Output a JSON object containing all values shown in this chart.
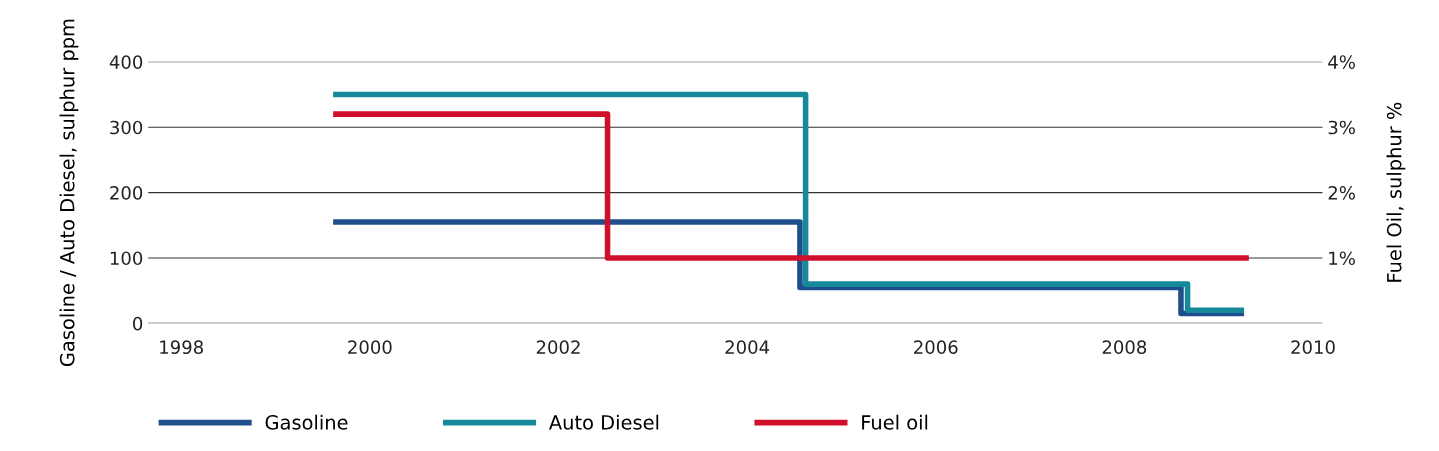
{
  "chart_data": {
    "type": "step",
    "ylabel": "Gasoline / Auto Diesel, sulphur ppm",
    "y2label": "Fuel Oil, sulphur %",
    "xlim": [
      1997.65,
      2010.1
    ],
    "xticks": [
      1998,
      2000,
      2002,
      2004,
      2006,
      2008,
      2010
    ],
    "ylim": [
      0,
      400
    ],
    "yticks": [
      0,
      100,
      200,
      300,
      400
    ],
    "y2lim": [
      0,
      4
    ],
    "y2ticks": [
      {
        "value": 1,
        "label": "1%"
      },
      {
        "value": 2,
        "label": "2%"
      },
      {
        "value": 3,
        "label": "3%"
      },
      {
        "value": 4,
        "label": "4%"
      }
    ],
    "grid": "y",
    "legend": "bottom",
    "line_style": "solid",
    "marker": "none",
    "series": [
      {
        "name": "Gasoline",
        "color": "#1f4e8c",
        "x": [
          1999.64,
          2004.56,
          2008.6,
          2009.24
        ],
        "values": [
          155,
          55,
          15,
          15
        ]
      },
      {
        "name": "Auto Diesel",
        "color": "#16899a",
        "x": [
          1999.64,
          2004.62,
          2008.67,
          2009.24
        ],
        "values": [
          350,
          60,
          20,
          20
        ]
      },
      {
        "name": "Fuel oil",
        "color": "#d0102a",
        "axis": "y2",
        "x": [
          1999.64,
          2002.52,
          2009.29
        ],
        "values": [
          3.2,
          1.0,
          1.0
        ]
      }
    ]
  }
}
